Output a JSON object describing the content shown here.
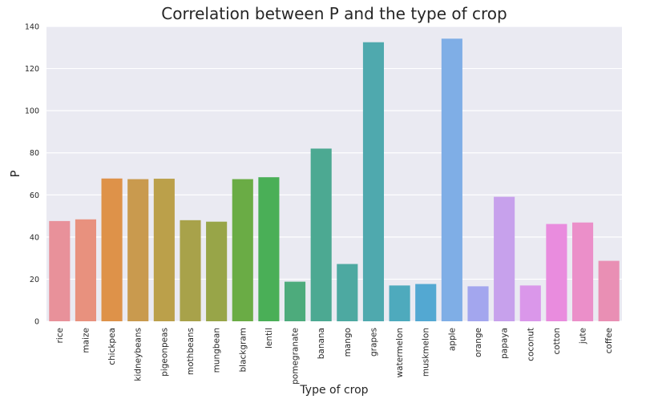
{
  "chart_data": {
    "type": "bar",
    "title": "Correlation between P and the type of crop",
    "xlabel": "Type of crop",
    "ylabel": "P",
    "ylim": [
      0,
      140
    ],
    "yticks": [
      0,
      20,
      40,
      60,
      80,
      100,
      120,
      140
    ],
    "grid": true,
    "categories": [
      "rice",
      "maize",
      "chickpea",
      "kidneybeans",
      "pigeonpeas",
      "mothbeans",
      "mungbean",
      "blackgram",
      "lentil",
      "pomegranate",
      "banana",
      "mango",
      "grapes",
      "watermelon",
      "muskmelon",
      "apple",
      "orange",
      "papaya",
      "coconut",
      "cotton",
      "jute",
      "coffee"
    ],
    "values": [
      47.6,
      48.4,
      67.8,
      67.5,
      67.7,
      48.0,
      47.3,
      67.5,
      68.4,
      18.8,
      82.0,
      27.2,
      132.5,
      17.0,
      17.7,
      134.2,
      16.6,
      59.1,
      17.0,
      46.2,
      46.9,
      28.7
    ],
    "colors": [
      "#E8919A",
      "#E8917E",
      "#DE9249",
      "#C99A4E",
      "#BBA04A",
      "#A8A24A",
      "#98A548",
      "#6AAC45",
      "#4AAF57",
      "#4DAB7C",
      "#4CA992",
      "#4DA9A1",
      "#4FA9AE",
      "#4EAABD",
      "#53A8D2",
      "#7FAEE6",
      "#A3A6EE",
      "#C7A1EC",
      "#DA97EA",
      "#E98CDE",
      "#EB8FC9",
      "#E98FB4"
    ],
    "background": "#EAEAF2",
    "grid_color": "#ffffff"
  }
}
